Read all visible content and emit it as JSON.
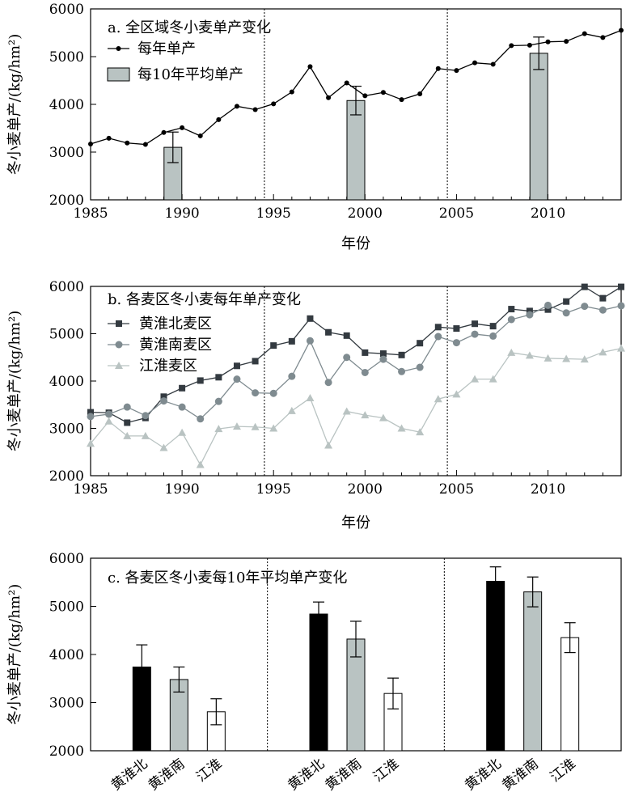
{
  "chart_data": [
    {
      "panel": "a",
      "type": "line",
      "title": "a. 全区域冬小麦单产变化",
      "xlabel": "年份",
      "ylabel": "冬小麦单产/(kg/hm²)",
      "xlim": [
        1985,
        2014
      ],
      "ylim": [
        2000,
        6000
      ],
      "xticks": [
        1985,
        1990,
        1995,
        2000,
        2005,
        2010
      ],
      "yticks": [
        2000,
        3000,
        4000,
        5000,
        6000
      ],
      "dividers": [
        1994.5,
        2004.5
      ],
      "series": [
        {
          "name": "每年单产",
          "type": "line",
          "x": [
            1985,
            1986,
            1987,
            1988,
            1989,
            1990,
            1991,
            1992,
            1993,
            1994,
            1995,
            1996,
            1997,
            1998,
            1999,
            2000,
            2001,
            2002,
            2003,
            2004,
            2005,
            2006,
            2007,
            2008,
            2009,
            2010,
            2011,
            2012,
            2013,
            2014
          ],
          "values": [
            3170,
            3290,
            3190,
            3160,
            3410,
            3510,
            3340,
            3680,
            3960,
            3890,
            4010,
            4260,
            4790,
            4140,
            4450,
            4180,
            4250,
            4100,
            4220,
            4750,
            4710,
            4870,
            4840,
            5230,
            5240,
            5310,
            5320,
            5480,
            5400,
            5550
          ]
        },
        {
          "name": "每10年平均单产",
          "type": "bar",
          "x": [
            1989.5,
            1999.5,
            2009.5
          ],
          "values": [
            3100,
            4080,
            5070
          ],
          "err": [
            320,
            300,
            340
          ]
        }
      ]
    },
    {
      "panel": "b",
      "type": "line",
      "title": "b. 各麦区冬小麦每年单产变化",
      "xlabel": "年份",
      "ylabel": "冬小麦单产/(kg/hm²)",
      "xlim": [
        1985,
        2014
      ],
      "ylim": [
        2000,
        6000
      ],
      "xticks": [
        1985,
        1990,
        1995,
        2000,
        2005,
        2010
      ],
      "yticks": [
        2000,
        3000,
        4000,
        5000,
        6000
      ],
      "dividers": [
        1994.5,
        2004.5
      ],
      "x": [
        1985,
        1986,
        1987,
        1988,
        1989,
        1990,
        1991,
        1992,
        1993,
        1994,
        1995,
        1996,
        1997,
        1998,
        1999,
        2000,
        2001,
        2002,
        2003,
        2004,
        2005,
        2006,
        2007,
        2008,
        2009,
        2010,
        2011,
        2012,
        2013,
        2014
      ],
      "series": [
        {
          "name": "黄淮北麦区",
          "marker": "square",
          "values": [
            3340,
            3330,
            3120,
            3220,
            3670,
            3850,
            4010,
            4080,
            4320,
            4420,
            4750,
            4840,
            5320,
            5030,
            4960,
            4600,
            4580,
            4550,
            4800,
            5140,
            5110,
            5210,
            5160,
            5520,
            5480,
            5510,
            5680,
            5990,
            5750,
            5990
          ]
        },
        {
          "name": "黄淮南麦区",
          "marker": "circle",
          "values": [
            3250,
            3300,
            3450,
            3270,
            3580,
            3450,
            3200,
            3570,
            4040,
            3750,
            3740,
            4100,
            4850,
            3970,
            4500,
            4180,
            4460,
            4200,
            4290,
            4940,
            4810,
            4990,
            4950,
            5300,
            5400,
            5600,
            5440,
            5580,
            5500,
            5590
          ]
        },
        {
          "name": "江淮麦区",
          "marker": "triangle",
          "values": [
            2680,
            3150,
            2840,
            2840,
            2590,
            2910,
            2230,
            2990,
            3040,
            3030,
            3000,
            3370,
            3640,
            2640,
            3360,
            3280,
            3220,
            3000,
            2920,
            3620,
            3720,
            4040,
            4040,
            4600,
            4540,
            4480,
            4470,
            4460,
            4610,
            4690
          ]
        }
      ]
    },
    {
      "panel": "c",
      "type": "bar",
      "title": "c. 各麦区冬小麦每10年平均单产变化",
      "xlabel": "",
      "ylabel": "冬小麦单产/(kg/hm²)",
      "ylim": [
        2000,
        6000
      ],
      "yticks": [
        2000,
        3000,
        4000,
        5000,
        6000
      ],
      "groups": 3,
      "categories": [
        "黄淮北",
        "黄淮南",
        "江淮"
      ],
      "colors": [
        "#000000",
        "#b9c3c2",
        "#ffffff"
      ],
      "series": [
        {
          "name": "黄淮北",
          "values": [
            3740,
            4840,
            5520
          ],
          "err": [
            460,
            250,
            300
          ]
        },
        {
          "name": "黄淮南",
          "values": [
            3480,
            4320,
            5300
          ],
          "err": [
            260,
            370,
            310
          ]
        },
        {
          "name": "江淮",
          "values": [
            2810,
            3190,
            4350
          ],
          "err": [
            270,
            320,
            310
          ]
        }
      ]
    }
  ],
  "colors": {
    "yearly_line": "#000000",
    "decade_bar": "#b9c3c2",
    "north": "#333a40",
    "south": "#7f8b90",
    "jianghuai": "#b9c3c2"
  }
}
